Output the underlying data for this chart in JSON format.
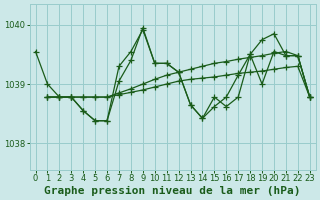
{
  "title": "Graphe pression niveau de la mer (hPa)",
  "bg_color": "#cce8e8",
  "grid_color": "#99cccc",
  "line_color": "#1a5c1a",
  "xlim": [
    -0.5,
    23.5
  ],
  "ylim": [
    1037.55,
    1040.35
  ],
  "yticks": [
    1038,
    1039,
    1040
  ],
  "xticks": [
    0,
    1,
    2,
    3,
    4,
    5,
    6,
    7,
    8,
    9,
    10,
    11,
    12,
    13,
    14,
    15,
    16,
    17,
    18,
    19,
    20,
    21,
    22,
    23
  ],
  "marker": "+",
  "markersize": 4,
  "linewidth": 0.9,
  "title_fontsize": 8,
  "tick_fontsize": 6,
  "s1x": [
    0,
    1,
    2,
    3,
    4,
    5,
    6,
    7,
    8,
    9,
    10,
    11,
    12,
    13,
    14,
    15,
    16,
    17,
    18,
    19,
    20,
    21,
    22,
    23
  ],
  "s1y": [
    1039.55,
    1039.0,
    1038.78,
    1038.78,
    1038.55,
    1038.38,
    1038.38,
    1039.05,
    1039.4,
    1039.95,
    1039.35,
    1039.35,
    1039.2,
    1038.65,
    1038.42,
    1038.62,
    1038.78,
    1039.15,
    1039.5,
    1039.0,
    1039.55,
    1039.48,
    1039.48,
    1038.78
  ],
  "s2x": [
    1,
    2,
    3,
    4,
    5,
    6,
    7,
    8,
    9,
    10,
    11,
    12,
    13,
    14,
    15,
    16,
    17,
    18,
    19,
    20,
    21,
    22,
    23
  ],
  "s2y": [
    1038.78,
    1038.78,
    1038.78,
    1038.55,
    1038.38,
    1038.38,
    1039.3,
    1039.55,
    1039.92,
    1039.35,
    1039.35,
    1039.2,
    1038.65,
    1038.42,
    1038.78,
    1038.62,
    1038.78,
    1039.5,
    1039.75,
    1039.85,
    1039.48,
    1039.48,
    1038.78
  ],
  "s3x": [
    1,
    2,
    3,
    4,
    5,
    6,
    7,
    8,
    9,
    10,
    11,
    12,
    13,
    14,
    15,
    16,
    17,
    18,
    19,
    20,
    21,
    22,
    23
  ],
  "s3y": [
    1038.78,
    1038.78,
    1038.78,
    1038.78,
    1038.78,
    1038.78,
    1038.82,
    1038.86,
    1038.9,
    1038.95,
    1039.0,
    1039.05,
    1039.08,
    1039.1,
    1039.12,
    1039.15,
    1039.18,
    1039.2,
    1039.22,
    1039.25,
    1039.28,
    1039.3,
    1038.78
  ],
  "s4x": [
    1,
    2,
    3,
    4,
    5,
    6,
    7,
    8,
    9,
    10,
    11,
    12,
    13,
    14,
    15,
    16,
    17,
    18,
    19,
    20,
    21,
    22,
    23
  ],
  "s4y": [
    1038.78,
    1038.78,
    1038.78,
    1038.78,
    1038.78,
    1038.78,
    1038.85,
    1038.92,
    1039.0,
    1039.08,
    1039.15,
    1039.2,
    1039.25,
    1039.3,
    1039.35,
    1039.38,
    1039.42,
    1039.45,
    1039.48,
    1039.52,
    1039.55,
    1039.48,
    1038.78
  ]
}
